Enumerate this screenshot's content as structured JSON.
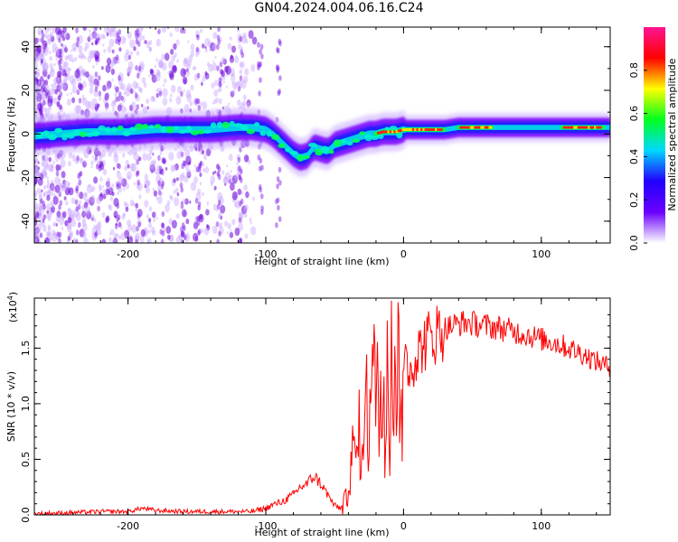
{
  "title": "GN04.2024.004.06.16.C24",
  "colorbar": {
    "label": "Normalized spectral amplitude",
    "ticks": [
      "0.0",
      "0.2",
      "0.4",
      "0.6",
      "0.8"
    ],
    "stops": [
      "#ffffff",
      "#6a00ff",
      "#2200ff",
      "#00d8ff",
      "#00ff20",
      "#ffff00",
      "#ff0000",
      "#ff1493"
    ]
  },
  "chart_data": [
    {
      "type": "heatmap",
      "title": "GN04.2024.004.06.16.C24",
      "xlabel": "Height of straight line (km)",
      "ylabel": "Frequency (Hz)",
      "xlim": [
        -268,
        150
      ],
      "ylim": [
        -50,
        49
      ],
      "xticks": [
        "-200",
        "-100",
        "0",
        "100"
      ],
      "yticks": [
        "-40",
        "-20",
        "0",
        "20",
        "40"
      ],
      "colorbar_label": "Normalized spectral amplitude",
      "ridge": {
        "x": [
          -268,
          -250,
          -230,
          -200,
          -180,
          -160,
          -140,
          -120,
          -110,
          -100,
          -95,
          -90,
          -85,
          -80,
          -75,
          -70,
          -65,
          -60,
          -55,
          -50,
          -45,
          -40,
          -35,
          -30,
          -25,
          -20,
          -15,
          -10,
          -5,
          0,
          10,
          20,
          30,
          40,
          50,
          60,
          70,
          80,
          90,
          100,
          110,
          120,
          130,
          140,
          150
        ],
        "y": [
          -1,
          0,
          1,
          1,
          2,
          2,
          2,
          3,
          3,
          2,
          0,
          -3,
          -6,
          -9,
          -11,
          -10,
          -6,
          -7,
          -8,
          -5,
          -4,
          -3,
          -2,
          -1,
          0,
          0,
          1,
          1,
          1,
          2,
          2,
          2,
          2,
          3,
          3,
          3,
          3,
          3,
          3,
          3,
          3,
          3,
          3,
          3,
          3
        ]
      },
      "high_amplitude_x": [
        [
          -20,
          30
        ],
        [
          40,
          65
        ],
        [
          115,
          145
        ]
      ]
    },
    {
      "type": "line",
      "xlabel": "Height of straight line (km)",
      "ylabel": "SNR (10 * v/v)",
      "scale_note": "(x10",
      "scale_exp": "4",
      "scale_close": ")",
      "xlim": [
        -268,
        150
      ],
      "ylim": [
        0,
        1.95
      ],
      "xticks": [
        "-200",
        "-100",
        "0",
        "100"
      ],
      "yticks": [
        "0.0",
        "0.5",
        "1.0",
        "1.5"
      ],
      "series": [
        {
          "color": "#ff0000",
          "x": [
            -268,
            -240,
            -220,
            -200,
            -190,
            -180,
            -160,
            -140,
            -120,
            -110,
            -100,
            -95,
            -90,
            -85,
            -80,
            -75,
            -70,
            -65,
            -60,
            -55,
            -50,
            -45,
            -42,
            -40,
            -38,
            -35,
            -32,
            -30,
            -27,
            -25,
            -22,
            -20,
            -17,
            -15,
            -12,
            -10,
            -7,
            -5,
            -2,
            0,
            5,
            10,
            15,
            20,
            25,
            30,
            35,
            40,
            45,
            50,
            60,
            70,
            80,
            90,
            100,
            110,
            120,
            130,
            140,
            150
          ],
          "y": [
            0.01,
            0.02,
            0.03,
            0.03,
            0.06,
            0.04,
            0.03,
            0.03,
            0.03,
            0.03,
            0.06,
            0.09,
            0.11,
            0.14,
            0.18,
            0.25,
            0.28,
            0.35,
            0.28,
            0.18,
            0.08,
            0.06,
            0.12,
            0.33,
            0.55,
            0.48,
            0.72,
            0.82,
            0.95,
            1.05,
            1.1,
            1.25,
            1.15,
            1.3,
            1.42,
            1.28,
            1.35,
            1.3,
            1.45,
            1.38,
            1.35,
            1.45,
            1.55,
            1.6,
            1.65,
            1.68,
            1.7,
            1.72,
            1.73,
            1.72,
            1.7,
            1.68,
            1.65,
            1.62,
            1.58,
            1.55,
            1.5,
            1.45,
            1.38,
            1.33
          ]
        }
      ]
    }
  ]
}
